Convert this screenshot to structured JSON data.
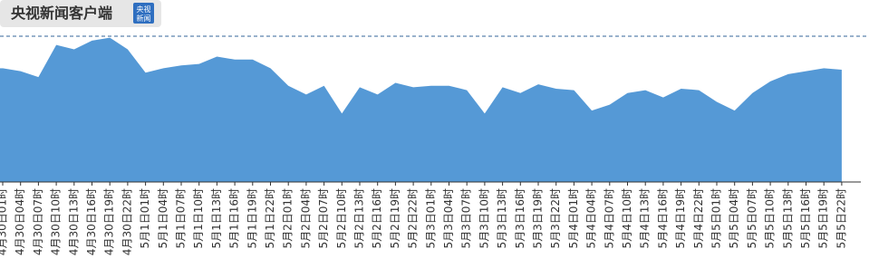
{
  "header": {
    "title": "央视新闻客户端",
    "logo_lines": [
      "央视",
      "新闻"
    ]
  },
  "chart_data": {
    "type": "area",
    "categories": [
      "4月30日01时",
      "4月30日04时",
      "4月30日07时",
      "4月30日10时",
      "4月30日13时",
      "4月30日16时",
      "4月30日19时",
      "4月30日22时",
      "5月1日01时",
      "5月1日04时",
      "5月1日07时",
      "5月1日10时",
      "5月1日13时",
      "5月1日16时",
      "5月1日19时",
      "5月1日22时",
      "5月2日01时",
      "5月2日04时",
      "5月2日07时",
      "5月2日10时",
      "5月2日13时",
      "5月2日16时",
      "5月2日19时",
      "5月2日22时",
      "5月3日01时",
      "5月3日04时",
      "5月3日07时",
      "5月3日10时",
      "5月3日13时",
      "5月3日16时",
      "5月3日19时",
      "5月3日22时",
      "5月4日01时",
      "5月4日04时",
      "5月4日07时",
      "5月4日10时",
      "5月4日13时",
      "5月4日16时",
      "5月4日19时",
      "5月4日22时",
      "5月5日01时",
      "5月5日04时",
      "5月5日07时",
      "5月5日10时",
      "5月5日13时",
      "5月5日16时",
      "5月5日19时",
      "5月5日22时"
    ],
    "values": [
      78,
      76,
      72,
      94,
      91,
      97,
      99,
      91,
      75,
      78,
      80,
      81,
      86,
      84,
      84,
      78,
      66,
      60,
      66,
      47,
      65,
      60,
      68,
      65,
      66,
      66,
      63,
      47,
      65,
      61,
      67,
      64,
      63,
      49,
      53,
      61,
      63,
      58,
      64,
      63,
      55,
      49,
      61,
      69,
      74,
      76,
      78,
      77
    ],
    "color": "#5599d6",
    "ylim": [
      0,
      100
    ]
  }
}
